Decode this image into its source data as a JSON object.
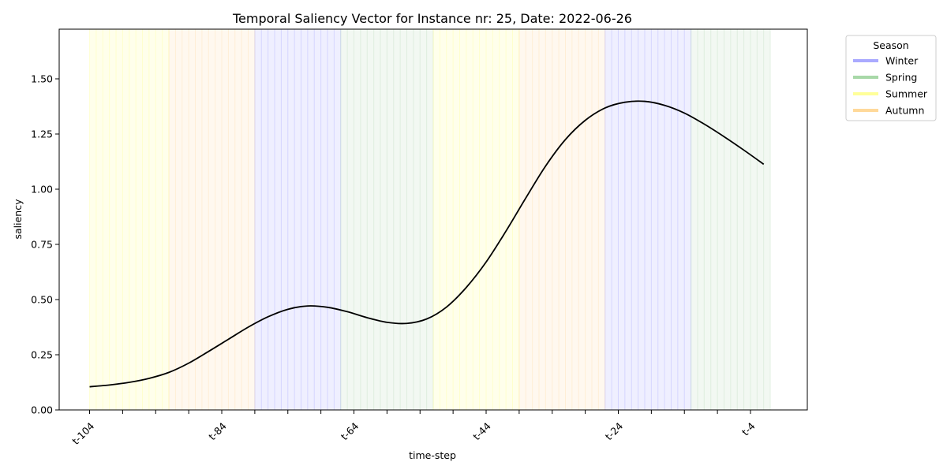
{
  "chart_data": {
    "type": "line",
    "title": "Temporal Saliency Vector for Instance nr: 25, Date: 2022-06-26",
    "xlabel": "time-step",
    "ylabel": "saliency",
    "xlim": [
      -108.6,
      4.6
    ],
    "ylim": [
      0,
      1.725
    ],
    "x_ticks": [
      {
        "x": -104,
        "label": "t-104"
      },
      {
        "x": -99,
        "label": ""
      },
      {
        "x": -94,
        "label": ""
      },
      {
        "x": -89,
        "label": ""
      },
      {
        "x": -84,
        "label": "t-84"
      },
      {
        "x": -79,
        "label": ""
      },
      {
        "x": -74,
        "label": ""
      },
      {
        "x": -69,
        "label": ""
      },
      {
        "x": -64,
        "label": "t-64"
      },
      {
        "x": -59,
        "label": ""
      },
      {
        "x": -54,
        "label": ""
      },
      {
        "x": -49,
        "label": ""
      },
      {
        "x": -44,
        "label": "t-44"
      },
      {
        "x": -39,
        "label": ""
      },
      {
        "x": -34,
        "label": ""
      },
      {
        "x": -29,
        "label": ""
      },
      {
        "x": -24,
        "label": "t-24"
      },
      {
        "x": -19,
        "label": ""
      },
      {
        "x": -14,
        "label": ""
      },
      {
        "x": -9,
        "label": ""
      },
      {
        "x": -4,
        "label": "t-4"
      }
    ],
    "y_ticks": [
      {
        "y": 0.0,
        "label": "0.00"
      },
      {
        "y": 0.25,
        "label": "0.25"
      },
      {
        "y": 0.5,
        "label": "0.50"
      },
      {
        "y": 0.75,
        "label": "0.75"
      },
      {
        "y": 1.0,
        "label": "1.00"
      },
      {
        "y": 1.25,
        "label": "1.25"
      },
      {
        "y": 1.5,
        "label": "1.50"
      }
    ],
    "seasons": [
      {
        "season": "Summer",
        "x_start": -104,
        "x_end": -92
      },
      {
        "season": "Autumn",
        "x_start": -92,
        "x_end": -79
      },
      {
        "season": "Winter",
        "x_start": -79,
        "x_end": -66
      },
      {
        "season": "Spring",
        "x_start": -66,
        "x_end": -52
      },
      {
        "season": "Summer",
        "x_start": -52,
        "x_end": -39
      },
      {
        "season": "Autumn",
        "x_start": -39,
        "x_end": -26
      },
      {
        "season": "Winter",
        "x_start": -26,
        "x_end": -13
      },
      {
        "season": "Spring",
        "x_start": -13,
        "x_end": -1
      }
    ],
    "series": [
      {
        "color": "#000000",
        "points": [
          [
            -104,
            0.105
          ],
          [
            -101,
            0.113
          ],
          [
            -98,
            0.125
          ],
          [
            -95,
            0.143
          ],
          [
            -92,
            0.17
          ],
          [
            -89,
            0.212
          ],
          [
            -86,
            0.265
          ],
          [
            -83,
            0.32
          ],
          [
            -80,
            0.375
          ],
          [
            -77,
            0.422
          ],
          [
            -74,
            0.456
          ],
          [
            -71,
            0.471
          ],
          [
            -68,
            0.465
          ],
          [
            -65,
            0.445
          ],
          [
            -62,
            0.418
          ],
          [
            -59,
            0.397
          ],
          [
            -56,
            0.392
          ],
          [
            -53,
            0.412
          ],
          [
            -50,
            0.466
          ],
          [
            -47,
            0.555
          ],
          [
            -44,
            0.67
          ],
          [
            -41,
            0.81
          ],
          [
            -38,
            0.96
          ],
          [
            -35,
            1.105
          ],
          [
            -32,
            1.225
          ],
          [
            -29,
            1.312
          ],
          [
            -26,
            1.368
          ],
          [
            -23,
            1.394
          ],
          [
            -20,
            1.398
          ],
          [
            -17,
            1.38
          ],
          [
            -14,
            1.345
          ],
          [
            -11,
            1.295
          ],
          [
            -8,
            1.238
          ],
          [
            -5,
            1.177
          ],
          [
            -2,
            1.113
          ]
        ]
      }
    ],
    "legend": {
      "title": "Season",
      "placement": "outside-top-right",
      "entries": [
        {
          "label": "Winter",
          "color": "#aaaaff"
        },
        {
          "label": "Spring",
          "color": "#a8d8a8"
        },
        {
          "label": "Summer",
          "color": "#ffff99"
        },
        {
          "label": "Autumn",
          "color": "#ffd99a"
        }
      ]
    },
    "season_fill_colors": {
      "Winter": "#8080ff",
      "Spring": "#99cc99",
      "Summer": "#ffff66",
      "Autumn": "#ffcc80"
    },
    "grid": false
  }
}
